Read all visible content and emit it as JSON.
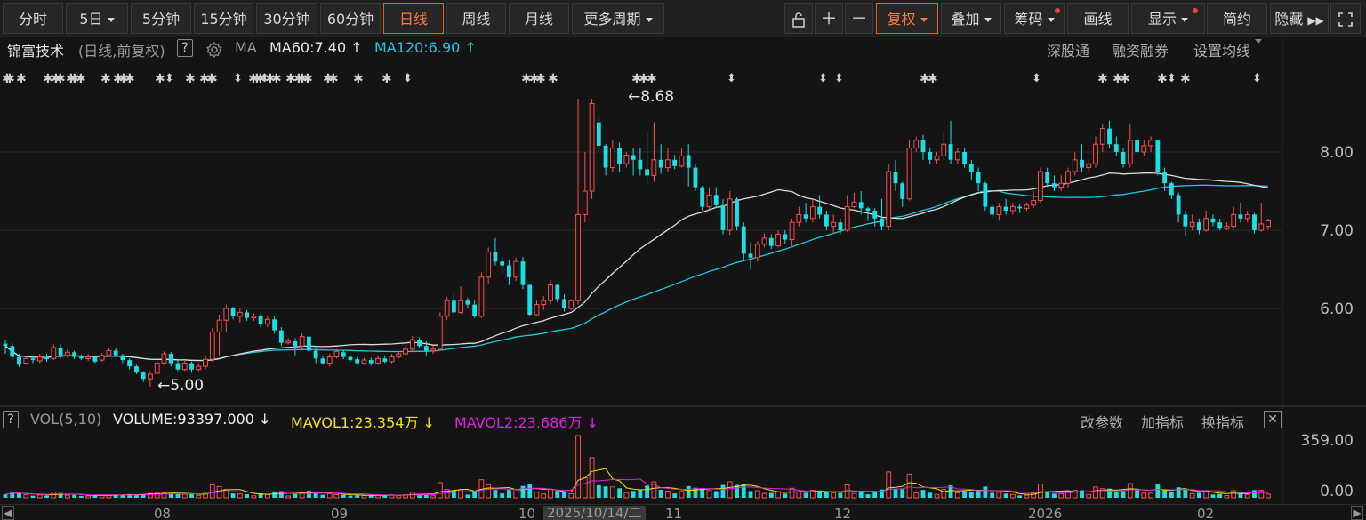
{
  "toolbar": {
    "periods": [
      "分时",
      "5日",
      "5分钟",
      "15分钟",
      "30分钟",
      "60分钟",
      "日线",
      "周线",
      "月线",
      "更多周期"
    ],
    "active_period": "日线",
    "tools": {
      "fuquan": "复权",
      "overlay": "叠加",
      "chips": "筹码",
      "draw": "画线",
      "display": "显示",
      "simple": "简约",
      "hide": "隐藏"
    },
    "accent": "#e0622a"
  },
  "info": {
    "stock_name": "锦富技术",
    "mode": "(日线,前复权)",
    "help": "?",
    "ma_label": "MA",
    "ma60": "MA60:7.40",
    "ma120": "MA120:6.90",
    "links": [
      "深股通",
      "融资融券",
      "设置均线"
    ]
  },
  "price_axis": [
    "8.00",
    "7.00",
    "6.00"
  ],
  "annotations": {
    "high": "8.68",
    "low": "5.00"
  },
  "volume": {
    "help": "?",
    "indicator": "VOL(5,10)",
    "volume": "VOLUME:93397.000",
    "mavol1": "MAVOL1:23.354万",
    "mavol2": "MAVOL2:23.686万",
    "actions": [
      "改参数",
      "加指标",
      "换指标"
    ],
    "close": "✕",
    "axis": [
      "359.00",
      "0.00"
    ]
  },
  "date_axis": {
    "labels": [
      "08",
      "09",
      "10",
      "11",
      "12",
      "2026",
      "02"
    ],
    "cursor": "2025/10/14/二"
  },
  "colors": {
    "up": "#ff4d4d",
    "down": "#1ae0e6",
    "ma60": "#dcdcdc",
    "ma120": "#1fc8e0",
    "mavol1": "#f0e020",
    "mavol2": "#e020e0"
  },
  "chart_data": {
    "type": "candlestick",
    "period": "daily",
    "y_axis": {
      "ticks": [
        6.0,
        7.0,
        8.0
      ]
    },
    "series": [
      {
        "name": "price",
        "candles": [
          [
            5.55,
            5.52,
            5.42,
            5.6
          ],
          [
            5.52,
            5.38,
            5.35,
            5.56
          ],
          [
            5.38,
            5.28,
            5.25,
            5.42
          ],
          [
            5.3,
            5.36,
            5.28,
            5.4
          ],
          [
            5.36,
            5.34,
            5.3,
            5.4
          ],
          [
            5.33,
            5.38,
            5.3,
            5.42
          ],
          [
            5.38,
            5.35,
            5.32,
            5.42
          ],
          [
            5.36,
            5.5,
            5.34,
            5.54
          ],
          [
            5.5,
            5.4,
            5.36,
            5.54
          ],
          [
            5.4,
            5.44,
            5.37,
            5.48
          ],
          [
            5.44,
            5.38,
            5.35,
            5.46
          ],
          [
            5.38,
            5.36,
            5.34,
            5.41
          ],
          [
            5.36,
            5.38,
            5.33,
            5.42
          ],
          [
            5.38,
            5.32,
            5.3,
            5.4
          ],
          [
            5.34,
            5.4,
            5.32,
            5.43
          ],
          [
            5.4,
            5.46,
            5.38,
            5.49
          ],
          [
            5.46,
            5.4,
            5.38,
            5.49
          ],
          [
            5.4,
            5.34,
            5.3,
            5.42
          ],
          [
            5.34,
            5.26,
            5.22,
            5.36
          ],
          [
            5.26,
            5.18,
            5.16,
            5.28
          ],
          [
            5.18,
            5.1,
            5.06,
            5.2
          ],
          [
            5.1,
            5.16,
            5.0,
            5.2
          ],
          [
            5.17,
            5.3,
            5.16,
            5.34
          ],
          [
            5.3,
            5.42,
            5.28,
            5.45
          ],
          [
            5.42,
            5.3,
            5.26,
            5.44
          ],
          [
            5.3,
            5.22,
            5.2,
            5.35
          ],
          [
            5.22,
            5.3,
            5.2,
            5.33
          ],
          [
            5.3,
            5.22,
            5.18,
            5.32
          ],
          [
            5.22,
            5.26,
            5.2,
            5.3
          ],
          [
            5.26,
            5.35,
            5.22,
            5.4
          ],
          [
            5.35,
            5.7,
            5.32,
            5.75
          ],
          [
            5.7,
            5.85,
            5.4,
            5.92
          ],
          [
            5.85,
            6.0,
            5.7,
            6.05
          ],
          [
            6.0,
            5.9,
            5.86,
            6.02
          ],
          [
            5.9,
            5.95,
            5.82,
            6.0
          ],
          [
            5.95,
            5.88,
            5.84,
            5.98
          ],
          [
            5.88,
            5.9,
            5.84,
            5.94
          ],
          [
            5.9,
            5.8,
            5.76,
            5.93
          ],
          [
            5.8,
            5.86,
            5.76,
            5.9
          ],
          [
            5.86,
            5.72,
            5.68,
            5.9
          ],
          [
            5.72,
            5.56,
            5.52,
            5.76
          ],
          [
            5.56,
            5.58,
            5.54,
            5.62
          ],
          [
            5.58,
            5.52,
            5.4,
            5.62
          ],
          [
            5.52,
            5.64,
            5.48,
            5.68
          ],
          [
            5.64,
            5.46,
            5.42,
            5.66
          ],
          [
            5.46,
            5.36,
            5.3,
            5.5
          ],
          [
            5.36,
            5.3,
            5.28,
            5.4
          ],
          [
            5.3,
            5.38,
            5.26,
            5.42
          ],
          [
            5.38,
            5.45,
            5.36,
            5.48
          ],
          [
            5.44,
            5.38,
            5.35,
            5.47
          ],
          [
            5.38,
            5.34,
            5.32,
            5.4
          ],
          [
            5.35,
            5.3,
            5.28,
            5.38
          ],
          [
            5.3,
            5.34,
            5.28,
            5.37
          ],
          [
            5.34,
            5.3,
            5.27,
            5.37
          ],
          [
            5.3,
            5.36,
            5.28,
            5.4
          ],
          [
            5.36,
            5.32,
            5.3,
            5.4
          ],
          [
            5.32,
            5.38,
            5.3,
            5.42
          ],
          [
            5.38,
            5.42,
            5.36,
            5.45
          ],
          [
            5.42,
            5.48,
            5.4,
            5.52
          ],
          [
            5.48,
            5.6,
            5.44,
            5.65
          ],
          [
            5.6,
            5.52,
            5.5,
            5.63
          ],
          [
            5.52,
            5.46,
            5.4,
            5.58
          ],
          [
            5.46,
            5.48,
            5.42,
            5.52
          ],
          [
            5.48,
            5.9,
            5.46,
            5.95
          ],
          [
            5.9,
            6.1,
            5.85,
            6.15
          ],
          [
            6.1,
            5.95,
            5.92,
            6.2
          ],
          [
            5.95,
            6.1,
            5.93,
            6.28
          ],
          [
            6.1,
            6.05,
            6.0,
            6.14
          ],
          [
            6.05,
            5.9,
            5.88,
            6.1
          ],
          [
            5.9,
            6.4,
            5.88,
            6.46
          ],
          [
            6.4,
            6.72,
            6.32,
            6.78
          ],
          [
            6.72,
            6.6,
            6.55,
            6.9
          ],
          [
            6.6,
            6.55,
            6.45,
            6.66
          ],
          [
            6.55,
            6.4,
            6.3,
            6.62
          ],
          [
            6.4,
            6.6,
            6.35,
            6.65
          ],
          [
            6.6,
            6.3,
            6.25,
            6.66
          ],
          [
            6.3,
            5.92,
            5.9,
            6.32
          ],
          [
            5.92,
            6.05,
            5.9,
            6.1
          ],
          [
            6.05,
            6.1,
            5.98,
            6.16
          ],
          [
            6.1,
            6.3,
            6.05,
            6.36
          ],
          [
            6.3,
            6.12,
            6.08,
            6.32
          ],
          [
            6.12,
            6.0,
            5.96,
            6.18
          ],
          [
            6.0,
            6.1,
            5.98,
            6.12
          ],
          [
            6.1,
            7.2,
            6.05,
            8.68
          ],
          [
            7.2,
            7.5,
            7.1,
            8.0
          ],
          [
            7.5,
            8.62,
            7.4,
            8.68
          ],
          [
            8.38,
            8.08,
            8.0,
            8.45
          ],
          [
            8.08,
            7.8,
            7.7,
            8.1
          ],
          [
            7.8,
            8.05,
            7.75,
            8.15
          ],
          [
            8.05,
            7.85,
            7.75,
            8.12
          ],
          [
            7.85,
            7.96,
            7.8,
            8.0
          ],
          [
            7.96,
            7.9,
            7.7,
            8.05
          ],
          [
            7.9,
            7.78,
            7.7,
            8.05
          ],
          [
            7.78,
            7.7,
            7.6,
            8.25
          ],
          [
            7.7,
            7.9,
            7.62,
            8.38
          ],
          [
            7.9,
            7.8,
            7.72,
            8.1
          ],
          [
            7.8,
            7.9,
            7.75,
            8.05
          ],
          [
            7.9,
            7.82,
            7.78,
            7.96
          ],
          [
            7.82,
            7.95,
            7.8,
            8.05
          ],
          [
            7.96,
            7.8,
            7.56,
            8.1
          ],
          [
            7.8,
            7.55,
            7.5,
            7.85
          ],
          [
            7.55,
            7.3,
            7.25,
            7.57
          ],
          [
            7.3,
            7.45,
            7.26,
            7.55
          ],
          [
            7.45,
            7.32,
            7.28,
            7.55
          ],
          [
            7.32,
            7.0,
            6.95,
            7.4
          ],
          [
            7.0,
            7.4,
            6.94,
            7.5
          ],
          [
            7.4,
            7.05,
            7.0,
            7.42
          ],
          [
            7.05,
            6.7,
            6.6,
            7.1
          ],
          [
            6.7,
            6.65,
            6.5,
            6.85
          ],
          [
            6.65,
            6.82,
            6.6,
            6.86
          ],
          [
            6.82,
            6.9,
            6.78,
            6.96
          ],
          [
            6.9,
            6.8,
            6.76,
            6.95
          ],
          [
            6.8,
            6.95,
            6.78,
            7.0
          ],
          [
            6.95,
            6.88,
            6.82,
            7.0
          ],
          [
            6.88,
            7.1,
            6.8,
            7.15
          ],
          [
            7.1,
            7.2,
            7.05,
            7.3
          ],
          [
            7.2,
            7.15,
            7.1,
            7.35
          ],
          [
            7.15,
            7.3,
            7.1,
            7.4
          ],
          [
            7.3,
            7.2,
            7.15,
            7.45
          ],
          [
            7.2,
            7.05,
            7.0,
            7.25
          ],
          [
            7.05,
            7.1,
            6.95,
            7.2
          ],
          [
            7.1,
            7.0,
            6.95,
            7.15
          ],
          [
            7.0,
            7.3,
            6.98,
            7.45
          ],
          [
            7.3,
            7.36,
            7.28,
            7.48
          ],
          [
            7.36,
            7.28,
            7.2,
            7.5
          ],
          [
            7.28,
            7.25,
            7.12,
            7.3
          ],
          [
            7.25,
            7.15,
            7.05,
            7.28
          ],
          [
            7.15,
            7.05,
            7.0,
            7.4
          ],
          [
            7.05,
            7.75,
            7.0,
            7.85
          ],
          [
            7.75,
            7.6,
            7.5,
            7.9
          ],
          [
            7.6,
            7.4,
            7.3,
            7.62
          ],
          [
            7.4,
            8.05,
            7.38,
            8.15
          ],
          [
            8.05,
            8.15,
            8.0,
            8.2
          ],
          [
            8.15,
            8.0,
            7.9,
            8.22
          ],
          [
            8.0,
            7.9,
            7.85,
            8.05
          ],
          [
            7.9,
            7.95,
            7.85,
            8.0
          ],
          [
            7.95,
            8.1,
            7.9,
            8.25
          ],
          [
            8.1,
            7.9,
            7.85,
            8.4
          ],
          [
            7.9,
            8.0,
            7.85,
            8.05
          ],
          [
            8.0,
            7.85,
            7.8,
            8.05
          ],
          [
            7.85,
            7.75,
            7.65,
            7.9
          ],
          [
            7.75,
            7.6,
            7.5,
            7.8
          ],
          [
            7.6,
            7.3,
            7.25,
            7.62
          ],
          [
            7.3,
            7.2,
            7.15,
            7.35
          ],
          [
            7.2,
            7.3,
            7.12,
            7.35
          ],
          [
            7.3,
            7.25,
            7.2,
            7.4
          ],
          [
            7.25,
            7.3,
            7.2,
            7.35
          ],
          [
            7.3,
            7.28,
            7.22,
            7.34
          ],
          [
            7.28,
            7.32,
            7.25,
            7.36
          ],
          [
            7.32,
            7.38,
            7.28,
            7.5
          ],
          [
            7.38,
            7.75,
            7.35,
            7.8
          ],
          [
            7.75,
            7.6,
            7.55,
            7.8
          ],
          [
            7.6,
            7.55,
            7.5,
            7.7
          ],
          [
            7.55,
            7.6,
            7.5,
            7.7
          ],
          [
            7.6,
            7.75,
            7.55,
            7.8
          ],
          [
            7.75,
            7.9,
            7.7,
            8.0
          ],
          [
            7.9,
            7.8,
            7.75,
            8.1
          ],
          [
            7.8,
            7.85,
            7.75,
            7.9
          ],
          [
            7.85,
            8.1,
            7.8,
            8.2
          ],
          [
            8.1,
            8.3,
            8.0,
            8.35
          ],
          [
            8.3,
            8.1,
            8.05,
            8.4
          ],
          [
            8.1,
            8.0,
            7.95,
            8.2
          ],
          [
            8.0,
            7.85,
            7.8,
            8.05
          ],
          [
            7.85,
            8.15,
            7.8,
            8.35
          ],
          [
            8.15,
            8.0,
            7.95,
            8.25
          ],
          [
            8.0,
            8.08,
            7.95,
            8.15
          ],
          [
            8.08,
            8.15,
            8.0,
            8.2
          ],
          [
            8.15,
            7.75,
            7.7,
            8.15
          ],
          [
            7.75,
            7.6,
            7.5,
            7.8
          ],
          [
            7.6,
            7.45,
            7.4,
            7.62
          ],
          [
            7.45,
            7.2,
            7.1,
            7.48
          ],
          [
            7.2,
            7.05,
            6.92,
            7.25
          ],
          [
            7.05,
            7.1,
            7.0,
            7.2
          ],
          [
            7.1,
            7.0,
            6.95,
            7.15
          ],
          [
            7.0,
            7.15,
            6.98,
            7.25
          ],
          [
            7.15,
            7.1,
            7.05,
            7.2
          ],
          [
            7.1,
            7.02,
            7.0,
            7.15
          ],
          [
            7.02,
            7.05,
            7.0,
            7.1
          ],
          [
            7.05,
            7.2,
            7.02,
            7.3
          ],
          [
            7.2,
            7.15,
            7.1,
            7.35
          ],
          [
            7.15,
            7.2,
            7.1,
            7.25
          ],
          [
            7.2,
            7.0,
            6.96,
            7.22
          ],
          [
            7.0,
            7.08,
            6.98,
            7.35
          ],
          [
            7.05,
            7.12,
            7.0,
            7.15
          ]
        ]
      },
      {
        "name": "MA60",
        "last": 7.4
      },
      {
        "name": "MA120",
        "last": 6.9
      }
    ],
    "volume_axis": {
      "max": 359.0,
      "min": 0.0
    }
  }
}
